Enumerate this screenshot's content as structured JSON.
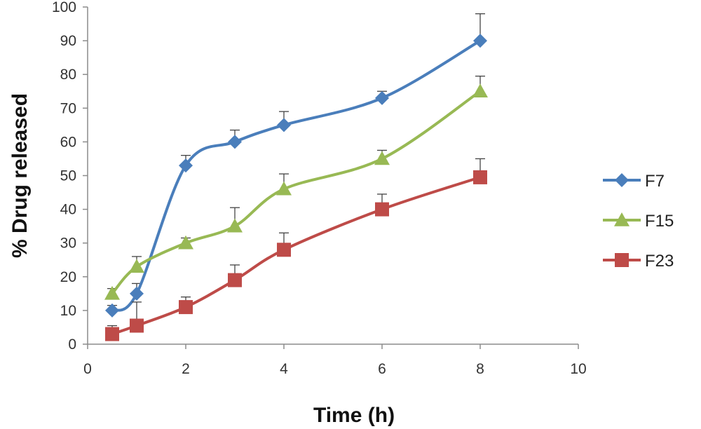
{
  "chart_data": {
    "type": "line",
    "xlabel": "Time (h)",
    "ylabel": "% Drug released",
    "xlim": [
      0,
      10
    ],
    "ylim": [
      0,
      100
    ],
    "xticks": [
      0,
      2,
      4,
      6,
      8,
      10
    ],
    "yticks": [
      0,
      10,
      20,
      30,
      40,
      50,
      60,
      70,
      80,
      90,
      100
    ],
    "grid": false,
    "legend_position": "right",
    "series": [
      {
        "name": "F7",
        "color": "#4A7EBB",
        "marker": "diamond",
        "x": [
          0.5,
          1,
          2,
          3,
          4,
          6,
          8
        ],
        "y": [
          10,
          15,
          53,
          60,
          65,
          73,
          90
        ],
        "error": [
          1.5,
          3,
          3,
          3.5,
          4,
          2,
          8
        ]
      },
      {
        "name": "F15",
        "color": "#98B954",
        "marker": "triangle",
        "x": [
          0.5,
          1,
          2,
          3,
          4,
          6,
          8
        ],
        "y": [
          15,
          23,
          30,
          35,
          46,
          55,
          75
        ],
        "error": [
          1.5,
          3,
          1.5,
          5.5,
          4.5,
          2.5,
          4.5
        ]
      },
      {
        "name": "F23",
        "color": "#BE4B48",
        "marker": "square",
        "x": [
          0.5,
          1,
          2,
          3,
          4,
          6,
          8
        ],
        "y": [
          3,
          5.5,
          11,
          19,
          28,
          40,
          49.5
        ],
        "error": [
          2.5,
          7,
          3,
          4.5,
          5,
          4.5,
          5.5
        ]
      }
    ]
  }
}
